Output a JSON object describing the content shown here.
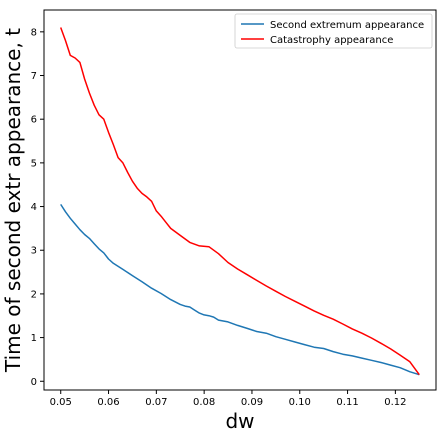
{
  "chart_data": {
    "type": "line",
    "xlabel": "dw",
    "ylabel": "Time of second extr appearance, t",
    "xlim": [
      0.0465,
      0.1285
    ],
    "ylim": [
      -0.2,
      8.5
    ],
    "x_ticks": [
      "0.05",
      "0.06",
      "0.07",
      "0.08",
      "0.09",
      "0.10",
      "0.11",
      "0.12"
    ],
    "x_tick_values": [
      0.05,
      0.06,
      0.07,
      0.08,
      0.09,
      0.1,
      0.11,
      0.12
    ],
    "y_ticks": [
      "0",
      "1",
      "2",
      "3",
      "4",
      "5",
      "6",
      "7",
      "8"
    ],
    "y_tick_values": [
      0,
      1,
      2,
      3,
      4,
      5,
      6,
      7,
      8
    ],
    "grid": false,
    "legend_position": "top-right",
    "series": [
      {
        "name": "Second extremum appearance",
        "color": "#1f77b4",
        "x": [
          0.05,
          0.051,
          0.052,
          0.053,
          0.054,
          0.055,
          0.056,
          0.057,
          0.058,
          0.059,
          0.06,
          0.061,
          0.063,
          0.065,
          0.067,
          0.069,
          0.071,
          0.073,
          0.075,
          0.076,
          0.077,
          0.078,
          0.079,
          0.08,
          0.081,
          0.082,
          0.083,
          0.085,
          0.087,
          0.089,
          0.091,
          0.093,
          0.095,
          0.097,
          0.099,
          0.101,
          0.103,
          0.105,
          0.107,
          0.109,
          0.111,
          0.113,
          0.115,
          0.117,
          0.119,
          0.121,
          0.123,
          0.125
        ],
        "y": [
          4.05,
          3.88,
          3.73,
          3.6,
          3.47,
          3.36,
          3.27,
          3.15,
          3.03,
          2.94,
          2.8,
          2.7,
          2.56,
          2.42,
          2.28,
          2.13,
          2.01,
          1.87,
          1.76,
          1.72,
          1.7,
          1.63,
          1.56,
          1.52,
          1.5,
          1.47,
          1.4,
          1.36,
          1.28,
          1.21,
          1.14,
          1.1,
          1.02,
          0.96,
          0.9,
          0.84,
          0.78,
          0.75,
          0.68,
          0.62,
          0.58,
          0.53,
          0.48,
          0.43,
          0.37,
          0.31,
          0.22,
          0.15
        ]
      },
      {
        "name": "Catastrophy appearance",
        "color": "#ff0000",
        "x": [
          0.05,
          0.051,
          0.052,
          0.053,
          0.054,
          0.055,
          0.056,
          0.057,
          0.058,
          0.059,
          0.06,
          0.061,
          0.062,
          0.063,
          0.064,
          0.065,
          0.066,
          0.067,
          0.068,
          0.069,
          0.07,
          0.071,
          0.072,
          0.073,
          0.075,
          0.077,
          0.079,
          0.081,
          0.083,
          0.085,
          0.087,
          0.089,
          0.091,
          0.093,
          0.095,
          0.097,
          0.099,
          0.101,
          0.103,
          0.105,
          0.107,
          0.109,
          0.111,
          0.113,
          0.115,
          0.117,
          0.119,
          0.121,
          0.123,
          0.125
        ],
        "y": [
          8.1,
          7.8,
          7.46,
          7.4,
          7.3,
          6.92,
          6.6,
          6.32,
          6.1,
          6.0,
          5.7,
          5.42,
          5.12,
          5.0,
          4.78,
          4.58,
          4.42,
          4.3,
          4.22,
          4.12,
          3.9,
          3.78,
          3.64,
          3.5,
          3.34,
          3.18,
          3.1,
          3.08,
          2.92,
          2.72,
          2.57,
          2.44,
          2.31,
          2.18,
          2.06,
          1.94,
          1.83,
          1.72,
          1.61,
          1.51,
          1.42,
          1.31,
          1.2,
          1.1,
          0.99,
          0.87,
          0.74,
          0.6,
          0.45,
          0.15
        ]
      }
    ]
  }
}
